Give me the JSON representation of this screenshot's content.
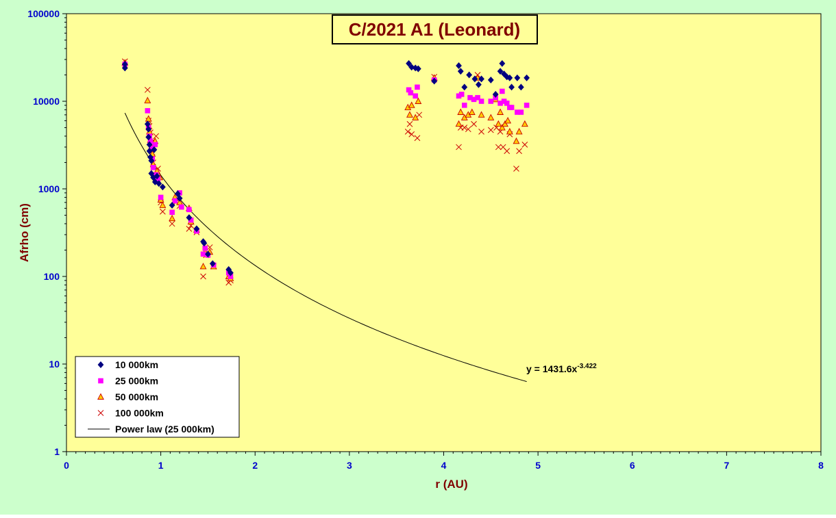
{
  "colors": {
    "outer_background": "#ccffcc",
    "plot_background": "#ffff99",
    "axis_text": "#0000cc",
    "axis_title": "#800000",
    "title_text": "#800000",
    "series_10000": "#000080",
    "series_25000": "#ff00ff",
    "series_50000_fill": "#ffcc00",
    "series_50000_edge": "#cc0000",
    "series_100000": "#cc0000",
    "trend": "#000000"
  },
  "chart_data": {
    "type": "scatter",
    "title": "C/2021 A1 (Leonard)",
    "xlabel": "r (AU)",
    "ylabel": "Afrho (cm)",
    "xlim": [
      0,
      8
    ],
    "ylim": [
      1,
      100000
    ],
    "y_scale": "log",
    "x_ticks": [
      "0",
      "1",
      "2",
      "3",
      "4",
      "5",
      "6",
      "7",
      "8"
    ],
    "y_ticks": [
      "1",
      "10",
      "100",
      "1000",
      "10000",
      "100000"
    ],
    "grid": false,
    "legend_position": "bottom-left",
    "trendline": {
      "name": "Power law (25 000km)",
      "equation_prefix": "y = 1431.6x",
      "equation_exponent": "-3.422",
      "coefficient": 1431.6,
      "exponent": -3.422,
      "x_range": [
        0.62,
        4.88
      ]
    },
    "series": [
      {
        "name": "10 000km",
        "marker": "diamond",
        "points": [
          [
            0.62,
            24000
          ],
          [
            0.62,
            26500
          ],
          [
            0.86,
            5500
          ],
          [
            0.87,
            4800
          ],
          [
            0.87,
            3900
          ],
          [
            0.88,
            3200
          ],
          [
            0.88,
            2700
          ],
          [
            0.89,
            2300
          ],
          [
            0.9,
            2100
          ],
          [
            0.9,
            1500
          ],
          [
            0.92,
            1350
          ],
          [
            0.93,
            2800
          ],
          [
            0.94,
            1200
          ],
          [
            0.96,
            1400
          ],
          [
            0.98,
            1150
          ],
          [
            1.02,
            1050
          ],
          [
            1.12,
            650
          ],
          [
            1.18,
            880
          ],
          [
            1.2,
            780
          ],
          [
            1.3,
            470
          ],
          [
            1.38,
            350
          ],
          [
            1.45,
            250
          ],
          [
            1.46,
            240
          ],
          [
            1.5,
            180
          ],
          [
            1.55,
            140
          ],
          [
            1.72,
            120
          ],
          [
            1.74,
            110
          ],
          [
            3.63,
            27000
          ],
          [
            3.66,
            24500
          ],
          [
            3.7,
            24000
          ],
          [
            3.73,
            23500
          ],
          [
            3.9,
            17000
          ],
          [
            4.16,
            25500
          ],
          [
            4.18,
            22000
          ],
          [
            4.22,
            14500
          ],
          [
            4.27,
            20000
          ],
          [
            4.33,
            18000
          ],
          [
            4.37,
            15500
          ],
          [
            4.4,
            18000
          ],
          [
            4.5,
            17500
          ],
          [
            4.55,
            12000
          ],
          [
            4.6,
            22000
          ],
          [
            4.62,
            27000
          ],
          [
            4.64,
            20500
          ],
          [
            4.67,
            19000
          ],
          [
            4.7,
            18500
          ],
          [
            4.72,
            14500
          ],
          [
            4.78,
            18500
          ],
          [
            4.82,
            14500
          ],
          [
            4.88,
            18500
          ]
        ]
      },
      {
        "name": "25 000km",
        "marker": "square",
        "points": [
          [
            0.62,
            26500
          ],
          [
            0.86,
            7800
          ],
          [
            0.87,
            5000
          ],
          [
            0.88,
            4000
          ],
          [
            0.89,
            3500
          ],
          [
            0.9,
            2900
          ],
          [
            0.91,
            2200
          ],
          [
            0.92,
            1750
          ],
          [
            0.94,
            3200
          ],
          [
            0.95,
            1450
          ],
          [
            0.97,
            1300
          ],
          [
            1.0,
            800
          ],
          [
            1.12,
            540
          ],
          [
            1.15,
            730
          ],
          [
            1.2,
            900
          ],
          [
            1.22,
            620
          ],
          [
            1.3,
            580
          ],
          [
            1.32,
            440
          ],
          [
            1.38,
            330
          ],
          [
            1.45,
            180
          ],
          [
            1.47,
            210
          ],
          [
            1.5,
            175
          ],
          [
            1.56,
            135
          ],
          [
            1.72,
            110
          ],
          [
            1.74,
            100
          ],
          [
            3.63,
            13500
          ],
          [
            3.65,
            12500
          ],
          [
            3.7,
            11500
          ],
          [
            3.72,
            14500
          ],
          [
            3.9,
            17500
          ],
          [
            4.16,
            11500
          ],
          [
            4.19,
            12000
          ],
          [
            4.22,
            9000
          ],
          [
            4.28,
            11000
          ],
          [
            4.32,
            10500
          ],
          [
            4.36,
            11000
          ],
          [
            4.4,
            10000
          ],
          [
            4.5,
            10000
          ],
          [
            4.55,
            11000
          ],
          [
            4.6,
            9500
          ],
          [
            4.62,
            13000
          ],
          [
            4.64,
            10000
          ],
          [
            4.67,
            9500
          ],
          [
            4.7,
            8500
          ],
          [
            4.72,
            8500
          ],
          [
            4.78,
            7500
          ],
          [
            4.82,
            7500
          ],
          [
            4.88,
            9000
          ]
        ]
      },
      {
        "name": "50 000km",
        "marker": "triangle",
        "points": [
          [
            0.62,
            27500
          ],
          [
            0.86,
            10200
          ],
          [
            0.87,
            6300
          ],
          [
            0.88,
            4500
          ],
          [
            0.89,
            3600
          ],
          [
            0.9,
            3000
          ],
          [
            0.91,
            2500
          ],
          [
            0.92,
            1900
          ],
          [
            0.94,
            3500
          ],
          [
            0.96,
            1600
          ],
          [
            0.99,
            1350
          ],
          [
            1.0,
            750
          ],
          [
            1.02,
            650
          ],
          [
            1.12,
            460
          ],
          [
            1.15,
            800
          ],
          [
            1.2,
            700
          ],
          [
            1.3,
            600
          ],
          [
            1.32,
            420
          ],
          [
            1.38,
            340
          ],
          [
            1.45,
            130
          ],
          [
            1.47,
            190
          ],
          [
            1.52,
            190
          ],
          [
            1.56,
            130
          ],
          [
            1.72,
            100
          ],
          [
            1.74,
            95
          ],
          [
            3.62,
            8500
          ],
          [
            3.64,
            7000
          ],
          [
            3.66,
            9000
          ],
          [
            3.7,
            6500
          ],
          [
            3.73,
            10000
          ],
          [
            3.9,
            18500
          ],
          [
            4.16,
            5500
          ],
          [
            4.18,
            7500
          ],
          [
            4.22,
            6500
          ],
          [
            4.26,
            7000
          ],
          [
            4.3,
            7500
          ],
          [
            4.36,
            18500
          ],
          [
            4.4,
            7000
          ],
          [
            4.5,
            6500
          ],
          [
            4.55,
            10500
          ],
          [
            4.58,
            5500
          ],
          [
            4.6,
            7500
          ],
          [
            4.62,
            5000
          ],
          [
            4.65,
            5500
          ],
          [
            4.68,
            6000
          ],
          [
            4.7,
            4500
          ],
          [
            4.77,
            3500
          ],
          [
            4.8,
            4500
          ],
          [
            4.86,
            5500
          ]
        ]
      },
      {
        "name": "100 000km",
        "marker": "cross",
        "points": [
          [
            0.62,
            28500
          ],
          [
            0.86,
            13500
          ],
          [
            0.87,
            6000
          ],
          [
            0.88,
            5200
          ],
          [
            0.89,
            4400
          ],
          [
            0.9,
            3400
          ],
          [
            0.91,
            2600
          ],
          [
            0.92,
            2000
          ],
          [
            0.95,
            4000
          ],
          [
            0.97,
            1700
          ],
          [
            1.0,
            700
          ],
          [
            1.02,
            550
          ],
          [
            1.12,
            400
          ],
          [
            1.16,
            700
          ],
          [
            1.2,
            640
          ],
          [
            1.3,
            350
          ],
          [
            1.32,
            380
          ],
          [
            1.38,
            320
          ],
          [
            1.45,
            100
          ],
          [
            1.48,
            175
          ],
          [
            1.52,
            215
          ],
          [
            1.56,
            130
          ],
          [
            1.72,
            85
          ],
          [
            1.74,
            90
          ],
          [
            3.62,
            4500
          ],
          [
            3.64,
            5500
          ],
          [
            3.66,
            4200
          ],
          [
            3.72,
            3800
          ],
          [
            3.74,
            7000
          ],
          [
            3.9,
            19000
          ],
          [
            4.16,
            3000
          ],
          [
            4.18,
            5000
          ],
          [
            4.22,
            5000
          ],
          [
            4.26,
            4800
          ],
          [
            4.32,
            5500
          ],
          [
            4.36,
            20000
          ],
          [
            4.4,
            4500
          ],
          [
            4.5,
            4700
          ],
          [
            4.56,
            5000
          ],
          [
            4.58,
            3000
          ],
          [
            4.6,
            4500
          ],
          [
            4.63,
            3000
          ],
          [
            4.67,
            2700
          ],
          [
            4.7,
            4200
          ],
          [
            4.77,
            1700
          ],
          [
            4.8,
            2700
          ],
          [
            4.86,
            3200
          ]
        ]
      }
    ]
  }
}
